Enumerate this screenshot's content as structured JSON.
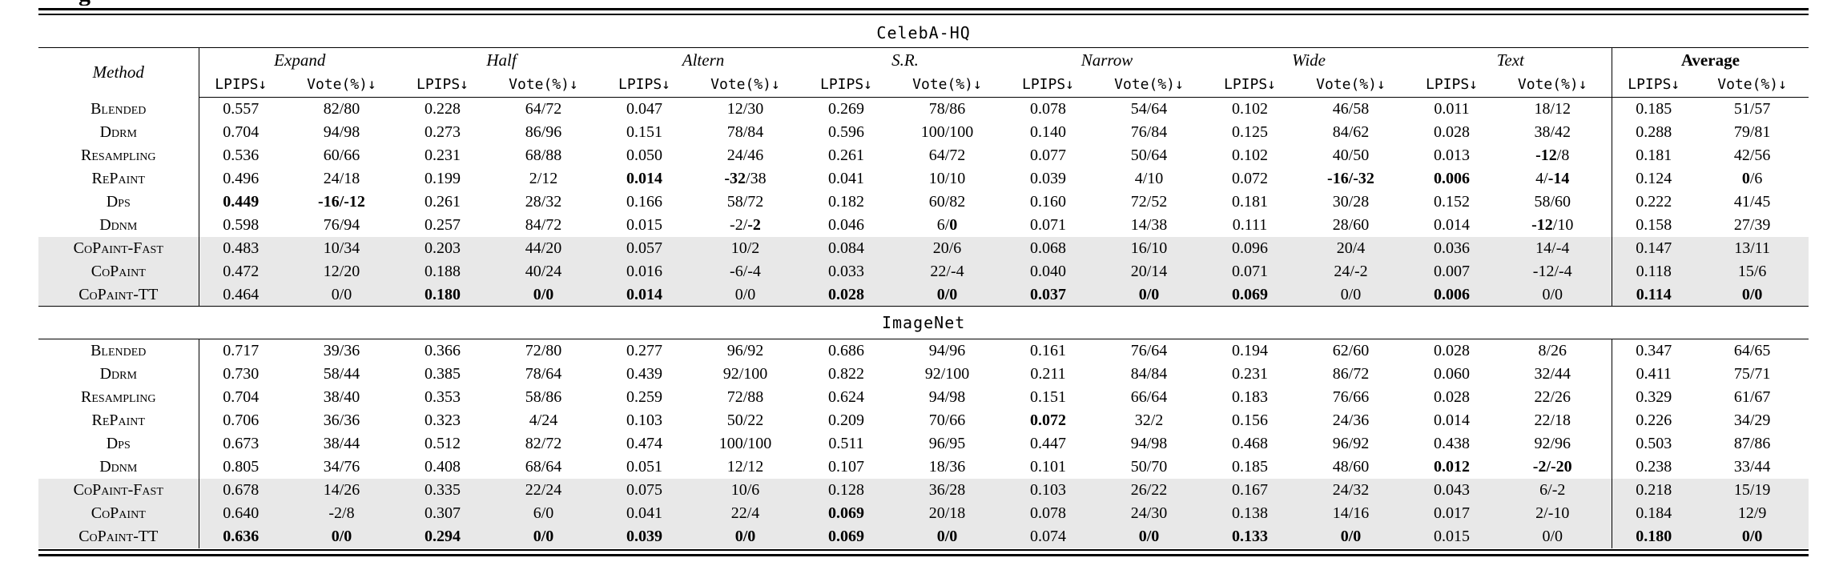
{
  "page": {
    "caption_fragment": "g"
  },
  "table": {
    "method_header": "Method",
    "metric_headers": {
      "lpips": "LPIPS↓",
      "vote": "Vote(%)↓"
    },
    "groups": [
      {
        "label": "Expand",
        "style": "italic"
      },
      {
        "label": "Half",
        "style": "italic"
      },
      {
        "label": "Altern",
        "style": "italic"
      },
      {
        "label": "S.R.",
        "style": "italic"
      },
      {
        "label": "Narrow",
        "style": "italic"
      },
      {
        "label": "Wide",
        "style": "italic"
      },
      {
        "label": "Text",
        "style": "italic"
      },
      {
        "label": "Average",
        "style": "bold"
      }
    ],
    "shade_color": "#e8e8e8",
    "sections": [
      {
        "title": "CelebA-HQ",
        "rows": [
          {
            "method": "Blended",
            "shaded": false,
            "cells": [
              "0.557",
              "82/80",
              "0.228",
              "64/72",
              "0.047",
              "12/30",
              "0.269",
              "78/86",
              "0.078",
              "54/64",
              "0.102",
              "46/58",
              "0.011",
              "18/12",
              "0.185",
              "51/57"
            ]
          },
          {
            "method": "Ddrm",
            "shaded": false,
            "cells": [
              "0.704",
              "94/98",
              "0.273",
              "86/96",
              "0.151",
              "78/84",
              "0.596",
              "100/100",
              "0.140",
              "76/84",
              "0.125",
              "84/62",
              "0.028",
              "38/42",
              "0.288",
              "79/81"
            ]
          },
          {
            "method": "Resampling",
            "shaded": false,
            "cells": [
              "0.536",
              "60/66",
              "0.231",
              "68/88",
              "0.050",
              "24/46",
              "0.261",
              "64/72",
              "0.077",
              "50/64",
              "0.102",
              "40/50",
              "0.013",
              "**-12**/8",
              "0.181",
              "42/56"
            ]
          },
          {
            "method": "RePaint",
            "shaded": false,
            "cells": [
              "0.496",
              "24/18",
              "0.199",
              "2/12",
              "**0.014**",
              "**-32**/38",
              "0.041",
              "10/10",
              "0.039",
              "4/10",
              "0.072",
              "**-16/-32**",
              "**0.006**",
              "4/**-14**",
              "0.124",
              "**0**/6"
            ]
          },
          {
            "method": "Dps",
            "shaded": false,
            "cells": [
              "**0.449**",
              "**-16/-12**",
              "0.261",
              "28/32",
              "0.166",
              "58/72",
              "0.182",
              "60/82",
              "0.160",
              "72/52",
              "0.181",
              "30/28",
              "0.152",
              "58/60",
              "0.222",
              "41/45"
            ]
          },
          {
            "method": "Ddnm",
            "shaded": false,
            "cells": [
              "0.598",
              "76/94",
              "0.257",
              "84/72",
              "0.015",
              "-2/**-2**",
              "0.046",
              "6/**0**",
              "0.071",
              "14/38",
              "0.111",
              "28/60",
              "0.014",
              "**-12**/10",
              "0.158",
              "27/39"
            ]
          },
          {
            "method": "CoPaint-Fast",
            "shaded": true,
            "cells": [
              "0.483",
              "10/34",
              "0.203",
              "44/20",
              "0.057",
              "10/2",
              "0.084",
              "20/6",
              "0.068",
              "16/10",
              "0.096",
              "20/4",
              "0.036",
              "14/-4",
              "0.147",
              "13/11"
            ]
          },
          {
            "method": "CoPaint",
            "shaded": true,
            "cells": [
              "0.472",
              "12/20",
              "0.188",
              "40/24",
              "0.016",
              "-6/-4",
              "0.033",
              "22/-4",
              "0.040",
              "20/14",
              "0.071",
              "24/-2",
              "0.007",
              "-12/-4",
              "0.118",
              "15/6"
            ]
          },
          {
            "method": "CoPaint-TT",
            "shaded": true,
            "cells": [
              "0.464",
              "0/0",
              "**0.180**",
              "**0/0**",
              "**0.014**",
              "0/0",
              "**0.028**",
              "**0/0**",
              "**0.037**",
              "**0/0**",
              "**0.069**",
              "0/0",
              "**0.006**",
              "0/0",
              "**0.114**",
              "**0/0**"
            ]
          }
        ]
      },
      {
        "title": "ImageNet",
        "rows": [
          {
            "method": "Blended",
            "shaded": false,
            "cells": [
              "0.717",
              "39/36",
              "0.366",
              "72/80",
              "0.277",
              "96/92",
              "0.686",
              "94/96",
              "0.161",
              "76/64",
              "0.194",
              "62/60",
              "0.028",
              "8/26",
              "0.347",
              "64/65"
            ]
          },
          {
            "method": "Ddrm",
            "shaded": false,
            "cells": [
              "0.730",
              "58/44",
              "0.385",
              "78/64",
              "0.439",
              "92/100",
              "0.822",
              "92/100",
              "0.211",
              "84/84",
              "0.231",
              "86/72",
              "0.060",
              "32/44",
              "0.411",
              "75/71"
            ]
          },
          {
            "method": "Resampling",
            "shaded": false,
            "cells": [
              "0.704",
              "38/40",
              "0.353",
              "58/86",
              "0.259",
              "72/88",
              "0.624",
              "94/98",
              "0.151",
              "66/64",
              "0.183",
              "76/66",
              "0.028",
              "22/26",
              "0.329",
              "61/67"
            ]
          },
          {
            "method": "RePaint",
            "shaded": false,
            "cells": [
              "0.706",
              "36/36",
              "0.323",
              "4/24",
              "0.103",
              "50/22",
              "0.209",
              "70/66",
              "**0.072**",
              "32/2",
              "0.156",
              "24/36",
              "0.014",
              "22/18",
              "0.226",
              "34/29"
            ]
          },
          {
            "method": "Dps",
            "shaded": false,
            "cells": [
              "0.673",
              "38/44",
              "0.512",
              "82/72",
              "0.474",
              "100/100",
              "0.511",
              "96/95",
              "0.447",
              "94/98",
              "0.468",
              "96/92",
              "0.438",
              "92/96",
              "0.503",
              "87/86"
            ]
          },
          {
            "method": "Ddnm",
            "shaded": false,
            "cells": [
              "0.805",
              "34/76",
              "0.408",
              "68/64",
              "0.051",
              "12/12",
              "0.107",
              "18/36",
              "0.101",
              "50/70",
              "0.185",
              "48/60",
              "**0.012**",
              "**-2/-20**",
              "0.238",
              "33/44"
            ]
          },
          {
            "method": "CoPaint-Fast",
            "shaded": true,
            "cells": [
              "0.678",
              "14/26",
              "0.335",
              "22/24",
              "0.075",
              "10/6",
              "0.128",
              "36/28",
              "0.103",
              "26/22",
              "0.167",
              "24/32",
              "0.043",
              "6/-2",
              "0.218",
              "15/19"
            ]
          },
          {
            "method": "CoPaint",
            "shaded": true,
            "cells": [
              "0.640",
              "-2/8",
              "0.307",
              "6/0",
              "0.041",
              "22/4",
              "**0.069**",
              "20/18",
              "0.078",
              "24/30",
              "0.138",
              "14/16",
              "0.017",
              "2/-10",
              "0.184",
              "12/9"
            ]
          },
          {
            "method": "CoPaint-TT",
            "shaded": true,
            "cells": [
              "**0.636**",
              "**0/0**",
              "**0.294**",
              "**0/0**",
              "**0.039**",
              "**0/0**",
              "**0.069**",
              "**0/0**",
              "0.074",
              "**0/0**",
              "**0.133**",
              "**0/0**",
              "0.015",
              "0/0",
              "**0.180**",
              "**0/0**"
            ]
          }
        ]
      }
    ]
  }
}
